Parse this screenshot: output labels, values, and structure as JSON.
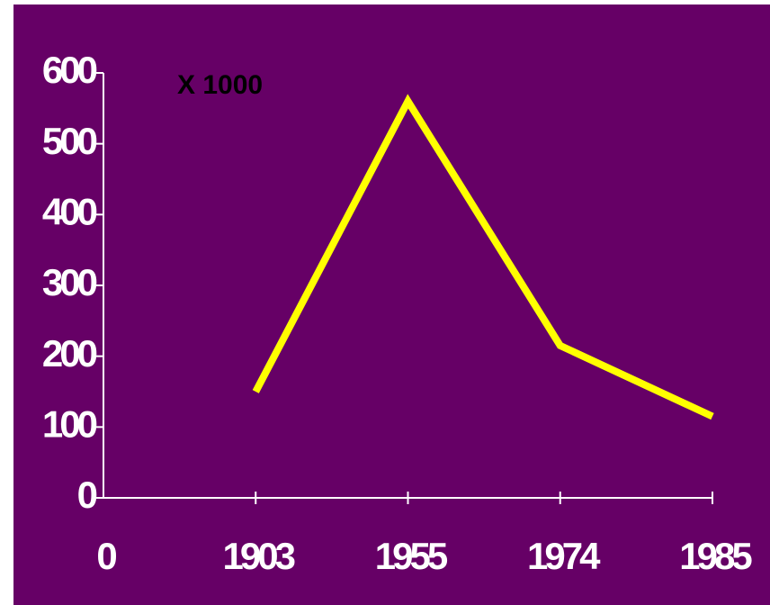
{
  "chart_data": {
    "type": "line",
    "annotation": "X 1000",
    "categories": [
      "0",
      "1903",
      "1955",
      "1974",
      "1985"
    ],
    "values": [
      null,
      150,
      560,
      215,
      115
    ],
    "color": "#ffff00",
    "ylim": [
      0,
      600
    ],
    "yticks": [
      0,
      100,
      200,
      300,
      400,
      500,
      600
    ],
    "grid": false
  }
}
